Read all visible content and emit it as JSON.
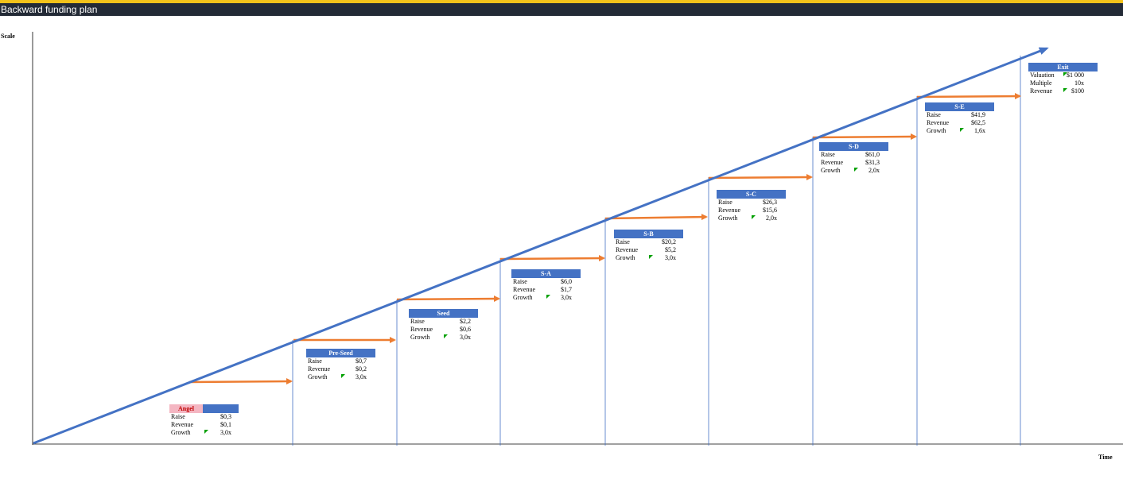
{
  "window": {
    "title": "Backward funding plan"
  },
  "axes": {
    "y_label": "Scale",
    "x_label": "Time"
  },
  "colors": {
    "trend_line": "#4472c4",
    "stage_arrow": "#ed7d31",
    "header": "#4472c4",
    "angel_header": "#f4b6c2",
    "flag": "#00a000"
  },
  "stages": [
    {
      "name": "Angel",
      "rows": [
        {
          "label": "Raise",
          "value": "$0,3"
        },
        {
          "label": "Revenue",
          "value": "$0,1"
        },
        {
          "label": "Growth",
          "value": "3,0x",
          "flag": true
        }
      ]
    },
    {
      "name": "Pre-Seed",
      "rows": [
        {
          "label": "Raise",
          "value": "$0,7"
        },
        {
          "label": "Revenue",
          "value": "$0,2"
        },
        {
          "label": "Growth",
          "value": "3,0x",
          "flag": true
        }
      ]
    },
    {
      "name": "Seed",
      "rows": [
        {
          "label": "Raise",
          "value": "$2,2"
        },
        {
          "label": "Revenue",
          "value": "$0,6"
        },
        {
          "label": "Growth",
          "value": "3,0x",
          "flag": true
        }
      ]
    },
    {
      "name": "S-A",
      "rows": [
        {
          "label": "Raise",
          "value": "$6,0"
        },
        {
          "label": "Revenue",
          "value": "$1,7"
        },
        {
          "label": "Growth",
          "value": "3,0x",
          "flag": true
        }
      ]
    },
    {
      "name": "S-B",
      "rows": [
        {
          "label": "Raise",
          "value": "$20,2"
        },
        {
          "label": "Revenue",
          "value": "$5,2"
        },
        {
          "label": "Growth",
          "value": "3,0x",
          "flag": true
        }
      ]
    },
    {
      "name": "S-C",
      "rows": [
        {
          "label": "Raise",
          "value": "$26,3"
        },
        {
          "label": "Revenue",
          "value": "$15,6"
        },
        {
          "label": "Growth",
          "value": "2,0x",
          "flag": true
        }
      ]
    },
    {
      "name": "S-D",
      "rows": [
        {
          "label": "Raise",
          "value": "$61,0"
        },
        {
          "label": "Revenue",
          "value": "$31,3"
        },
        {
          "label": "Growth",
          "value": "2,0x",
          "flag": true
        }
      ]
    },
    {
      "name": "S-E",
      "rows": [
        {
          "label": "Raise",
          "value": "$41,9"
        },
        {
          "label": "Revenue",
          "value": "$62,5"
        },
        {
          "label": "Growth",
          "value": "1,6x",
          "flag": true
        }
      ]
    },
    {
      "name": "Exit",
      "rows": [
        {
          "label": "Valuation",
          "value": "$1 000",
          "flag": true
        },
        {
          "label": "Multiple",
          "value": "10x"
        },
        {
          "label": "Revenue",
          "value": "$100",
          "flag": true
        }
      ]
    }
  ]
}
